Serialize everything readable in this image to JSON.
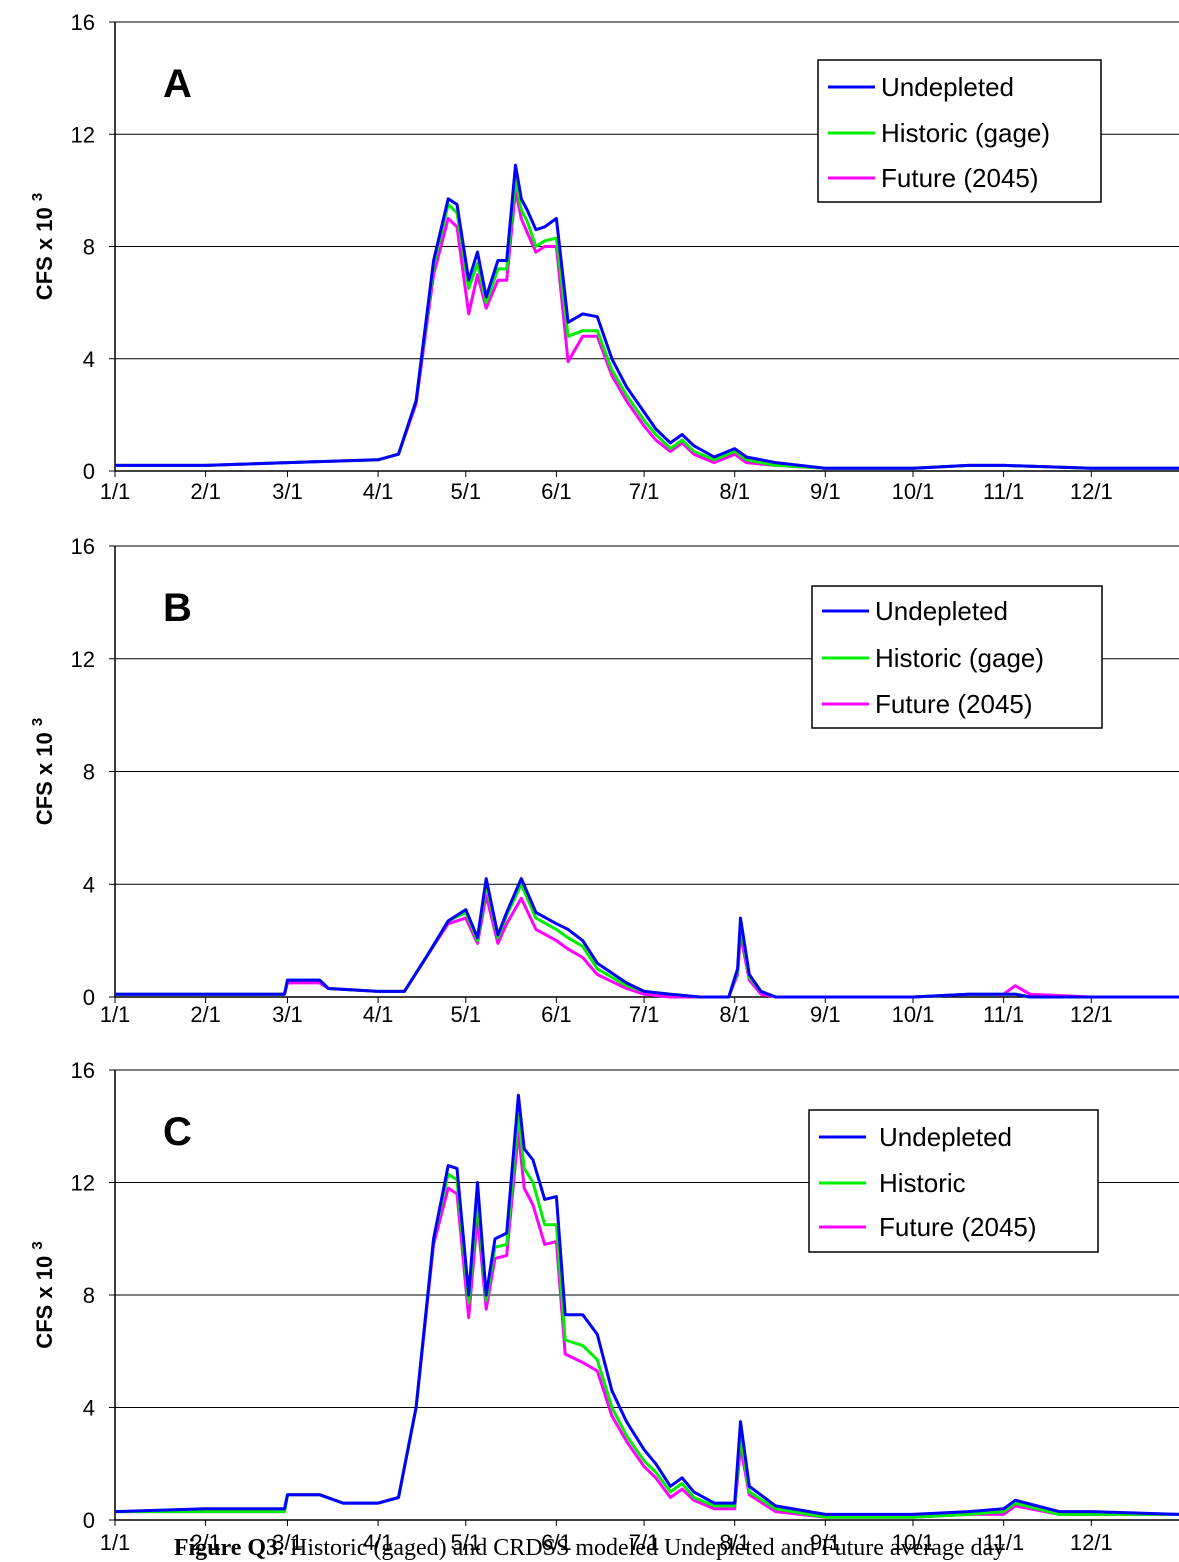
{
  "caption": {
    "figure_label": "Figure Q3.",
    "text": "Historic (gaged) and CRDSS modeled Undepleted and Future average day"
  },
  "colors": {
    "undepleted": "#0000ff",
    "historic": "#00ee00",
    "future": "#ff00ff",
    "gridline": "#000000"
  },
  "chart_data": [
    {
      "type": "line",
      "panel_label": "A",
      "ylabel": "CFS x 10 3",
      "ylim": [
        0,
        16
      ],
      "yticks": [
        0,
        4,
        8,
        12,
        16
      ],
      "xlim_day": [
        1,
        365
      ],
      "xticks": [
        "1/1",
        "2/1",
        "3/1",
        "4/1",
        "5/1",
        "6/1",
        "7/1",
        "8/1",
        "9/1",
        "10/1",
        "11/1",
        "12/1"
      ],
      "grid": true,
      "legend_position": "top-right",
      "series": [
        {
          "name": "Undepleted",
          "color": "#0000ff",
          "x": [
            "1/1",
            "2/1",
            "3/1",
            "4/1",
            "4/8",
            "4/14",
            "4/20",
            "4/25",
            "4/28",
            "5/2",
            "5/5",
            "5/8",
            "5/12",
            "5/15",
            "5/18",
            "5/20",
            "5/22",
            "5/25",
            "5/28",
            "6/1",
            "6/5",
            "6/10",
            "6/15",
            "6/20",
            "6/25",
            "7/1",
            "7/5",
            "7/10",
            "7/14",
            "7/18",
            "7/25",
            "8/1",
            "8/5",
            "8/15",
            "9/1",
            "10/1",
            "10/20",
            "11/1",
            "12/1",
            "12/31"
          ],
          "y": [
            0.2,
            0.2,
            0.3,
            0.4,
            0.6,
            2.5,
            7.5,
            9.7,
            9.5,
            6.8,
            7.8,
            6.2,
            7.5,
            7.5,
            10.9,
            9.7,
            9.3,
            8.6,
            8.7,
            9.0,
            5.3,
            5.6,
            5.5,
            4.0,
            3.0,
            2.1,
            1.5,
            1.0,
            1.3,
            0.9,
            0.5,
            0.8,
            0.5,
            0.3,
            0.1,
            0.1,
            0.2,
            0.2,
            0.1,
            0.1
          ]
        },
        {
          "name": "Historic (gage)",
          "color": "#00ee00",
          "x": [
            "1/1",
            "2/1",
            "3/1",
            "4/1",
            "4/8",
            "4/14",
            "4/20",
            "4/25",
            "4/28",
            "5/2",
            "5/5",
            "5/8",
            "5/12",
            "5/15",
            "5/18",
            "5/20",
            "5/22",
            "5/25",
            "5/28",
            "6/1",
            "6/5",
            "6/10",
            "6/15",
            "6/20",
            "6/25",
            "7/1",
            "7/5",
            "7/10",
            "7/14",
            "7/18",
            "7/25",
            "8/1",
            "8/5",
            "8/15",
            "9/1",
            "10/1",
            "10/20",
            "11/1",
            "12/1",
            "12/31"
          ],
          "y": [
            0.2,
            0.2,
            0.3,
            0.4,
            0.6,
            2.5,
            7.3,
            9.5,
            9.2,
            6.5,
            7.4,
            6.0,
            7.2,
            7.2,
            10.4,
            9.3,
            8.9,
            8.0,
            8.2,
            8.3,
            4.8,
            5.0,
            5.0,
            3.6,
            2.7,
            1.8,
            1.3,
            0.8,
            1.1,
            0.7,
            0.4,
            0.7,
            0.4,
            0.2,
            0.1,
            0.1,
            0.2,
            0.2,
            0.1,
            0.1
          ]
        },
        {
          "name": "Future (2045)",
          "color": "#ff00ff",
          "x": [
            "1/1",
            "2/1",
            "3/1",
            "4/1",
            "4/8",
            "4/14",
            "4/20",
            "4/25",
            "4/28",
            "5/2",
            "5/5",
            "5/8",
            "5/12",
            "5/15",
            "5/18",
            "5/20",
            "5/22",
            "5/25",
            "5/28",
            "6/1",
            "6/5",
            "6/10",
            "6/15",
            "6/20",
            "6/25",
            "7/1",
            "7/5",
            "7/10",
            "7/14",
            "7/18",
            "7/25",
            "8/1",
            "8/5",
            "8/15",
            "9/1",
            "10/1",
            "10/20",
            "11/1",
            "12/1",
            "12/31"
          ],
          "y": [
            0.2,
            0.2,
            0.3,
            0.4,
            0.6,
            2.4,
            7.0,
            9.0,
            8.7,
            5.6,
            7.0,
            5.8,
            6.8,
            6.8,
            10.0,
            9.0,
            8.5,
            7.8,
            8.0,
            8.0,
            3.9,
            4.8,
            4.8,
            3.4,
            2.5,
            1.6,
            1.1,
            0.7,
            1.0,
            0.6,
            0.3,
            0.6,
            0.3,
            0.2,
            0.1,
            0.1,
            0.2,
            0.2,
            0.1,
            0.1
          ]
        }
      ]
    },
    {
      "type": "line",
      "panel_label": "B",
      "ylabel": "CFS x 10 3",
      "ylim": [
        0,
        16
      ],
      "yticks": [
        0,
        4,
        8,
        12,
        16
      ],
      "xlim_day": [
        1,
        365
      ],
      "xticks": [
        "1/1",
        "2/1",
        "3/1",
        "4/1",
        "5/1",
        "6/1",
        "7/1",
        "8/1",
        "9/1",
        "10/1",
        "11/1",
        "12/1"
      ],
      "grid": true,
      "legend_position": "top-right",
      "series": [
        {
          "name": "Undepleted",
          "color": "#0000ff",
          "x": [
            "1/1",
            "2/1",
            "2/28",
            "3/1",
            "3/12",
            "3/15",
            "4/1",
            "4/10",
            "4/18",
            "4/25",
            "5/1",
            "5/5",
            "5/8",
            "5/12",
            "5/15",
            "5/20",
            "5/25",
            "6/1",
            "6/5",
            "6/10",
            "6/15",
            "6/25",
            "7/1",
            "7/10",
            "7/20",
            "7/30",
            "8/2",
            "8/3",
            "8/6",
            "8/10",
            "8/15",
            "9/1",
            "10/1",
            "10/20",
            "11/1",
            "11/5",
            "11/10",
            "12/1",
            "12/31"
          ],
          "y": [
            0.1,
            0.1,
            0.1,
            0.6,
            0.6,
            0.3,
            0.2,
            0.2,
            1.5,
            2.7,
            3.1,
            2.1,
            4.2,
            2.2,
            3.0,
            4.2,
            3.0,
            2.6,
            2.4,
            2.0,
            1.2,
            0.5,
            0.2,
            0.1,
            0.0,
            0.0,
            1.0,
            2.8,
            0.8,
            0.2,
            0.0,
            0.0,
            0.0,
            0.1,
            0.1,
            0.1,
            0.0,
            0.0,
            0.0
          ]
        },
        {
          "name": "Historic (gage)",
          "color": "#00ee00",
          "x": [
            "1/1",
            "2/1",
            "2/28",
            "3/1",
            "3/12",
            "3/15",
            "4/1",
            "4/10",
            "4/18",
            "4/25",
            "5/1",
            "5/5",
            "5/8",
            "5/12",
            "5/15",
            "5/20",
            "5/25",
            "6/1",
            "6/5",
            "6/10",
            "6/15",
            "6/25",
            "7/1",
            "7/10",
            "7/20",
            "7/30",
            "8/2",
            "8/3",
            "8/6",
            "8/10",
            "8/15",
            "9/1",
            "10/1",
            "10/20",
            "11/1",
            "11/5",
            "11/10",
            "12/1",
            "12/31"
          ],
          "y": [
            0.1,
            0.1,
            0.1,
            0.6,
            0.6,
            0.3,
            0.2,
            0.2,
            1.5,
            2.7,
            3.0,
            2.0,
            4.0,
            2.1,
            2.9,
            4.0,
            2.8,
            2.4,
            2.1,
            1.8,
            1.0,
            0.4,
            0.2,
            0.1,
            0.0,
            0.0,
            0.9,
            2.6,
            0.7,
            0.2,
            0.0,
            0.0,
            0.0,
            0.1,
            0.1,
            0.1,
            0.0,
            0.0,
            0.0
          ]
        },
        {
          "name": "Future (2045)",
          "color": "#ff00ff",
          "x": [
            "1/1",
            "2/1",
            "2/28",
            "3/1",
            "3/12",
            "3/15",
            "4/1",
            "4/10",
            "4/18",
            "4/25",
            "5/1",
            "5/5",
            "5/8",
            "5/12",
            "5/15",
            "5/20",
            "5/25",
            "6/1",
            "6/5",
            "6/10",
            "6/15",
            "6/25",
            "7/1",
            "7/10",
            "7/20",
            "7/30",
            "8/2",
            "8/3",
            "8/6",
            "8/10",
            "8/15",
            "9/1",
            "10/1",
            "10/20",
            "11/1",
            "11/5",
            "11/10",
            "12/1",
            "12/31"
          ],
          "y": [
            0.1,
            0.1,
            0.1,
            0.5,
            0.5,
            0.3,
            0.2,
            0.2,
            1.5,
            2.6,
            2.8,
            1.9,
            3.6,
            1.9,
            2.6,
            3.5,
            2.4,
            2.0,
            1.7,
            1.4,
            0.8,
            0.3,
            0.1,
            0.0,
            0.0,
            0.0,
            0.8,
            2.2,
            0.6,
            0.1,
            0.0,
            0.0,
            0.0,
            0.1,
            0.1,
            0.4,
            0.1,
            0.0,
            0.0
          ]
        }
      ]
    },
    {
      "type": "line",
      "panel_label": "C",
      "ylabel": "CFS x 10 3",
      "ylim": [
        0,
        16
      ],
      "yticks": [
        0,
        4,
        8,
        12,
        16
      ],
      "xlim_day": [
        1,
        365
      ],
      "xticks": [
        "1/1",
        "2/1",
        "3/1",
        "4/1",
        "5/1",
        "6/1",
        "7/1",
        "8/1",
        "9/1",
        "10/1",
        "11/1",
        "12/1"
      ],
      "grid": true,
      "legend_position": "top-right",
      "series": [
        {
          "name": "Undepleted",
          "color": "#0000ff",
          "x": [
            "1/1",
            "2/1",
            "2/28",
            "3/1",
            "3/12",
            "3/20",
            "4/1",
            "4/8",
            "4/14",
            "4/20",
            "4/25",
            "4/28",
            "5/2",
            "5/5",
            "5/8",
            "5/11",
            "5/15",
            "5/19",
            "5/21",
            "5/24",
            "5/28",
            "6/1",
            "6/4",
            "6/10",
            "6/15",
            "6/20",
            "6/25",
            "7/1",
            "7/5",
            "7/10",
            "7/14",
            "7/18",
            "7/25",
            "8/1",
            "8/3",
            "8/6",
            "8/15",
            "9/1",
            "10/1",
            "10/20",
            "11/1",
            "11/5",
            "11/20",
            "12/1",
            "12/31"
          ],
          "y": [
            0.3,
            0.4,
            0.4,
            0.9,
            0.9,
            0.6,
            0.6,
            0.8,
            4.0,
            10.0,
            12.6,
            12.5,
            8.0,
            12.0,
            8.0,
            10.0,
            10.2,
            15.1,
            13.2,
            12.8,
            11.4,
            11.5,
            7.3,
            7.3,
            6.6,
            4.6,
            3.5,
            2.5,
            2.0,
            1.2,
            1.5,
            1.0,
            0.6,
            0.6,
            3.5,
            1.2,
            0.5,
            0.2,
            0.2,
            0.3,
            0.4,
            0.7,
            0.3,
            0.3,
            0.2
          ]
        },
        {
          "name": "Historic",
          "color": "#00ee00",
          "x": [
            "1/1",
            "2/1",
            "2/28",
            "3/1",
            "3/12",
            "3/20",
            "4/1",
            "4/8",
            "4/14",
            "4/20",
            "4/25",
            "4/28",
            "5/2",
            "5/5",
            "5/8",
            "5/11",
            "5/15",
            "5/19",
            "5/21",
            "5/24",
            "5/28",
            "6/1",
            "6/4",
            "6/10",
            "6/15",
            "6/20",
            "6/25",
            "7/1",
            "7/5",
            "7/10",
            "7/14",
            "7/18",
            "7/25",
            "8/1",
            "8/3",
            "8/6",
            "8/15",
            "9/1",
            "10/1",
            "10/20",
            "11/1",
            "11/5",
            "11/20",
            "12/1",
            "12/31"
          ],
          "y": [
            0.3,
            0.3,
            0.3,
            0.9,
            0.9,
            0.6,
            0.6,
            0.8,
            4.0,
            10.0,
            12.3,
            12.1,
            7.7,
            11.5,
            7.8,
            9.7,
            9.8,
            14.4,
            12.5,
            12.0,
            10.5,
            10.5,
            6.4,
            6.2,
            5.7,
            4.0,
            3.0,
            2.1,
            1.7,
            1.0,
            1.3,
            0.8,
            0.5,
            0.5,
            3.0,
            1.0,
            0.4,
            0.1,
            0.1,
            0.2,
            0.3,
            0.6,
            0.2,
            0.2,
            0.2
          ]
        },
        {
          "name": "Future (2045)",
          "color": "#ff00ff",
          "x": [
            "1/1",
            "2/1",
            "2/28",
            "3/1",
            "3/12",
            "3/20",
            "4/1",
            "4/8",
            "4/14",
            "4/20",
            "4/25",
            "4/28",
            "5/2",
            "5/5",
            "5/8",
            "5/11",
            "5/15",
            "5/19",
            "5/21",
            "5/24",
            "5/28",
            "6/1",
            "6/4",
            "6/10",
            "6/15",
            "6/20",
            "6/25",
            "7/1",
            "7/5",
            "7/10",
            "7/14",
            "7/18",
            "7/25",
            "8/1",
            "8/3",
            "8/6",
            "8/15",
            "9/1",
            "10/1",
            "10/20",
            "11/1",
            "11/5",
            "11/20",
            "12/1",
            "12/31"
          ],
          "y": [
            0.3,
            0.3,
            0.3,
            0.9,
            0.9,
            0.6,
            0.6,
            0.8,
            4.0,
            9.8,
            11.8,
            11.6,
            7.2,
            10.8,
            7.5,
            9.3,
            9.4,
            13.8,
            11.8,
            11.2,
            9.8,
            9.9,
            5.9,
            5.6,
            5.3,
            3.7,
            2.8,
            1.9,
            1.5,
            0.8,
            1.1,
            0.7,
            0.4,
            0.4,
            2.6,
            0.9,
            0.3,
            0.1,
            0.1,
            0.2,
            0.2,
            0.5,
            0.2,
            0.2,
            0.2
          ]
        }
      ]
    }
  ]
}
